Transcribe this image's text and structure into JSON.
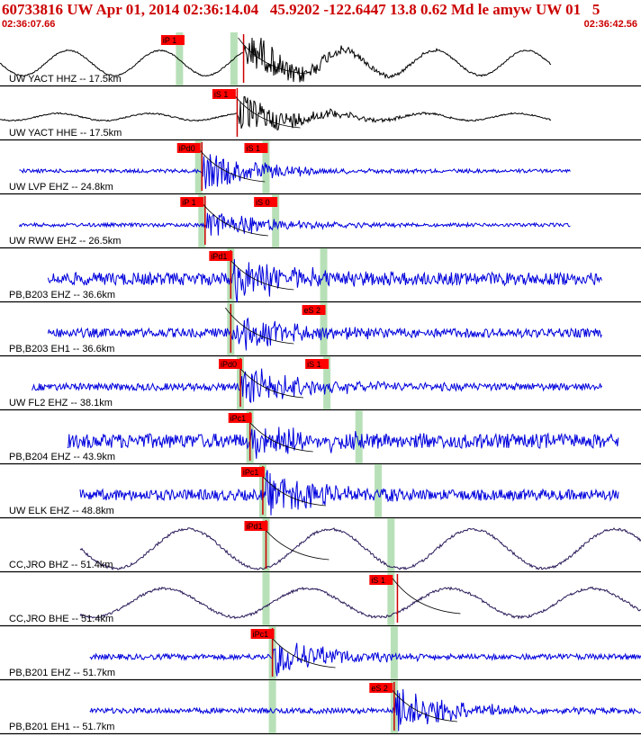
{
  "header": {
    "title": "60733816 UW Apr 01, 2014 02:36:14.04   45.9202 -122.6447 13.8 0.62 Md le amyw UW 01   5",
    "start_time": "02:36:07.66",
    "end_time": "02:36:42.56"
  },
  "chart_data": {
    "type": "line",
    "title": "60733816 UW Apr 01, 2014 02:36:14.04   45.9202 -122.6447 13.8 0.62 Md le amyw UW 01   5",
    "x_range": [
      "02:36:07.66",
      "02:36:42.56"
    ],
    "xlabel": "",
    "ylabel": "",
    "grid": false,
    "colors": {
      "short_period": "#0000dd",
      "broadband": "#000000",
      "broadband_alt": "#2b1b5a",
      "pick_box": "#ff0000",
      "pick_window": "#b8e0b8",
      "predicted_curve": "#000000"
    },
    "series": [
      {
        "label": "UW YACT HHZ -- 17.5km",
        "color": "#000000",
        "style": "broadband",
        "amp": 14,
        "trace_start": 0.0,
        "trace_end": 0.86,
        "onset": 0.38,
        "picks": [
          {
            "text": "iP 1",
            "pos": 0.285
          }
        ],
        "windows": [
          0.28,
          0.365
        ],
        "coda_amp": 26
      },
      {
        "label": "UW YACT HHE -- 17.5km",
        "color": "#000000",
        "style": "broadband",
        "amp": 4,
        "trace_start": 0.0,
        "trace_end": 0.86,
        "onset": 0.37,
        "picks": [
          {
            "text": "iS 1",
            "pos": 0.365
          }
        ],
        "windows": [],
        "coda_amp": 22
      },
      {
        "label": "UW LVP EHZ -- 24.8km",
        "color": "#0000dd",
        "style": "short",
        "amp": 2,
        "trace_start": 0.03,
        "trace_end": 0.89,
        "onset": 0.315,
        "picks": [
          {
            "text": "iPd0",
            "pos": 0.31
          },
          {
            "text": "iS 1",
            "pos": 0.415
          }
        ],
        "windows": [
          0.31,
          0.415
        ],
        "coda_amp": 22
      },
      {
        "label": "UW RWW EHZ -- 26.5km",
        "color": "#0000dd",
        "style": "short",
        "amp": 2,
        "trace_start": 0.03,
        "trace_end": 0.89,
        "onset": 0.32,
        "picks": [
          {
            "text": "iP 1",
            "pos": 0.315
          },
          {
            "text": "iS 0",
            "pos": 0.43
          }
        ],
        "windows": [
          0.315,
          0.43
        ],
        "coda_amp": 18
      },
      {
        "label": "PB,B203 EHZ -- 36.6km",
        "color": "#0000dd",
        "style": "short",
        "amp": 7,
        "trace_start": 0.075,
        "trace_end": 0.94,
        "onset": 0.36,
        "picks": [
          {
            "text": "iPd1",
            "pos": 0.36
          }
        ],
        "windows": [
          0.36,
          0.505
        ],
        "coda_amp": 26
      },
      {
        "label": "PB,B203 EH1 -- 36.6km",
        "color": "#0000dd",
        "style": "short",
        "amp": 5,
        "trace_start": 0.075,
        "trace_end": 0.94,
        "onset": 0.36,
        "picks": [
          {
            "text": "eS 2",
            "pos": 0.505
          }
        ],
        "windows": [
          0.36,
          0.505
        ],
        "coda_amp": 22
      },
      {
        "label": "UW FL2 EHZ -- 38.1km",
        "color": "#0000dd",
        "style": "short",
        "amp": 4,
        "trace_start": 0.05,
        "trace_end": 0.94,
        "onset": 0.375,
        "picks": [
          {
            "text": "iPd0",
            "pos": 0.375
          },
          {
            "text": "iS 1",
            "pos": 0.51
          }
        ],
        "windows": [
          0.375,
          0.51
        ],
        "coda_amp": 24
      },
      {
        "label": "PB,B204 EHZ -- 43.9km",
        "color": "#0000dd",
        "style": "short",
        "amp": 8,
        "trace_start": 0.105,
        "trace_end": 0.965,
        "onset": 0.39,
        "picks": [
          {
            "text": "iPc1",
            "pos": 0.39
          }
        ],
        "windows": [
          0.39,
          0.56
        ],
        "coda_amp": 22
      },
      {
        "label": "UW ELK EHZ -- 48.8km",
        "color": "#0000dd",
        "style": "short",
        "amp": 6,
        "trace_start": 0.125,
        "trace_end": 0.965,
        "onset": 0.41,
        "picks": [
          {
            "text": "iPc1",
            "pos": 0.41
          }
        ],
        "windows": [
          0.41,
          0.59
        ],
        "coda_amp": 24
      },
      {
        "label": "CC,JRO BHZ -- 51.4km",
        "color": "#2b1b5a",
        "style": "long",
        "amp": 22,
        "trace_start": 0.125,
        "trace_end": 1.0,
        "onset": 0.415,
        "picks": [
          {
            "text": "iPd1",
            "pos": 0.415
          }
        ],
        "windows": [
          0.415,
          0.61
        ],
        "coda_amp": 0
      },
      {
        "label": "CC,JRO BHE -- 51.4km",
        "color": "#2b1b5a",
        "style": "long",
        "amp": 16,
        "trace_start": 0.125,
        "trace_end": 1.0,
        "onset": 0.62,
        "picks": [
          {
            "text": "iS 1",
            "pos": 0.61
          }
        ],
        "windows": [
          0.415,
          0.61
        ],
        "coda_amp": 0
      },
      {
        "label": "PB,B201 EHZ -- 51.7km",
        "color": "#0000dd",
        "style": "short",
        "amp": 3,
        "trace_start": 0.14,
        "trace_end": 1.0,
        "onset": 0.425,
        "picks": [
          {
            "text": "iPc1",
            "pos": 0.425
          }
        ],
        "windows": [
          0.425,
          0.615
        ],
        "coda_amp": 22
      },
      {
        "label": "PB,B201 EH1 -- 51.7km",
        "color": "#0000dd",
        "style": "short",
        "amp": 3,
        "trace_start": 0.14,
        "trace_end": 1.0,
        "onset": 0.615,
        "picks": [
          {
            "text": "eS 2",
            "pos": 0.61
          }
        ],
        "windows": [
          0.425,
          0.615
        ],
        "coda_amp": 26
      }
    ]
  }
}
